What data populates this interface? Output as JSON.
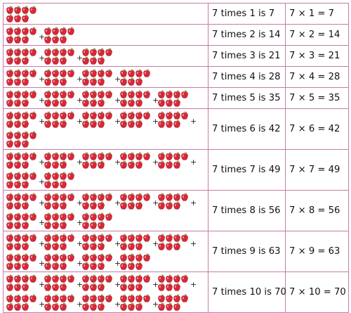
{
  "rows": [
    {
      "groups": 1,
      "text": "7 times 1 is 7",
      "eq": "7 × 1 = 7"
    },
    {
      "groups": 2,
      "text": "7 times 2 is 14",
      "eq": "7 × 2 = 14"
    },
    {
      "groups": 3,
      "text": "7 times 3 is 21",
      "eq": "7 × 3 = 21"
    },
    {
      "groups": 4,
      "text": "7 times 4 is 28",
      "eq": "7 × 4 = 28"
    },
    {
      "groups": 5,
      "text": "7 times 5 is 35",
      "eq": "7 × 5 = 35"
    },
    {
      "groups": 6,
      "text": "7 times 6 is 42",
      "eq": "7 × 6 = 42"
    },
    {
      "groups": 7,
      "text": "7 times 7 is 49",
      "eq": "7 × 7 = 49"
    },
    {
      "groups": 8,
      "text": "7 times 8 is 56",
      "eq": "7 × 8 = 56"
    },
    {
      "groups": 9,
      "text": "7 times 9 is 63",
      "eq": "7 × 9 = 63"
    },
    {
      "groups": 10,
      "text": "7 times 10 is 70",
      "eq": "7 × 10 = 70"
    }
  ],
  "plus_sign": "+",
  "colors": {
    "apple": "#d8283a",
    "apple_dark": "#a5121f",
    "stem": "#5a7a1e",
    "border": "#c77aa8"
  }
}
